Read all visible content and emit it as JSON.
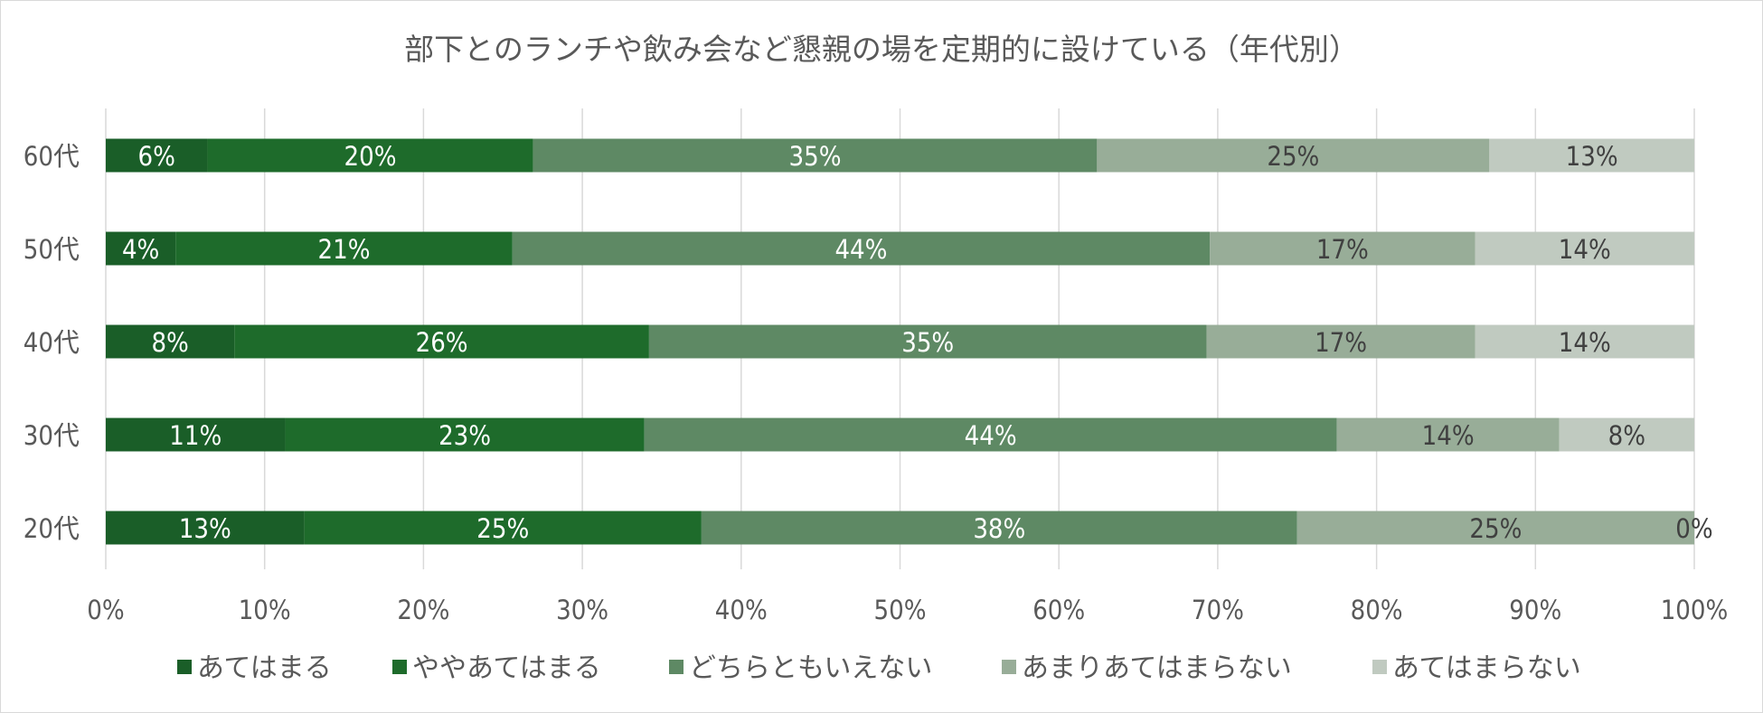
{
  "chart_data": {
    "type": "bar",
    "orientation": "horizontal",
    "stacked": "percent",
    "title": "部下とのランチや飲み会など懇親の場を定期的に設けている（年代別）",
    "xlabel": "",
    "ylabel": "",
    "xlim": [
      0,
      100
    ],
    "x_ticks": [
      "0%",
      "10%",
      "20%",
      "30%",
      "40%",
      "50%",
      "60%",
      "70%",
      "80%",
      "90%",
      "100%"
    ],
    "grid": true,
    "legend_position": "bottom",
    "categories": [
      "60代",
      "50代",
      "40代",
      "30代",
      "20代"
    ],
    "series": [
      {
        "name": "あてはまる",
        "color": "#1a5e28",
        "label_color": "#ffffff",
        "values": [
          6.4,
          4.4,
          8.1,
          11.3,
          12.5
        ],
        "labels": [
          "6%",
          "4%",
          "8%",
          "11%",
          "13%"
        ]
      },
      {
        "name": "ややあてはまる",
        "color": "#1e6b2b",
        "label_color": "#ffffff",
        "values": [
          20.5,
          21.2,
          26.1,
          22.6,
          25.0
        ],
        "labels": [
          "20%",
          "21%",
          "26%",
          "23%",
          "25%"
        ]
      },
      {
        "name": "どちらともいえない",
        "color": "#5e8964",
        "label_color": "#ffffff",
        "values": [
          35.5,
          43.9,
          35.1,
          43.6,
          37.5
        ],
        "labels": [
          "35%",
          "44%",
          "35%",
          "44%",
          "38%"
        ]
      },
      {
        "name": "あまりあてはまらない",
        "color": "#98ad98",
        "label_color": "#404040",
        "values": [
          24.7,
          16.7,
          16.9,
          14.0,
          25.0
        ],
        "labels": [
          "25%",
          "17%",
          "17%",
          "14%",
          "25%"
        ]
      },
      {
        "name": "あてはまらない",
        "color": "#c0cac0",
        "label_color": "#404040",
        "values": [
          12.9,
          13.8,
          13.8,
          8.5,
          0.0
        ],
        "labels": [
          "13%",
          "14%",
          "14%",
          "8%",
          "0%"
        ]
      }
    ]
  }
}
